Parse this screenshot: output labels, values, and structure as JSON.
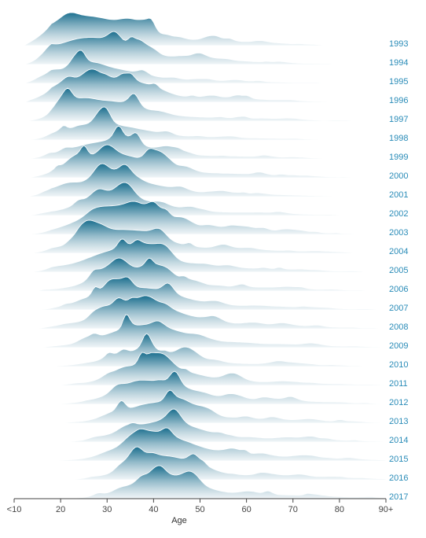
{
  "chart_data": {
    "type": "ridgeline",
    "xlabel": "Age",
    "x_ticks": [
      {
        "value": 10,
        "label": "<10"
      },
      {
        "value": 20,
        "label": "20"
      },
      {
        "value": 30,
        "label": "30"
      },
      {
        "value": 40,
        "label": "40"
      },
      {
        "value": 50,
        "label": "50"
      },
      {
        "value": 60,
        "label": "60"
      },
      {
        "value": 70,
        "label": "70"
      },
      {
        "value": 80,
        "label": "80"
      },
      {
        "value": 90,
        "label": "90+"
      }
    ],
    "xlim": [
      10,
      90
    ],
    "colors": {
      "ridge": "#1b6f8f",
      "label": "#2a8cb8",
      "axis": "#444444"
    },
    "series": [
      {
        "name": "1993",
        "peak_age": 25,
        "spread": 9,
        "roughness": 0.45,
        "seed": 1
      },
      {
        "name": "1994",
        "peak_age": 26,
        "spread": 8.5,
        "roughness": 0.45,
        "seed": 2
      },
      {
        "name": "1995",
        "peak_age": 27,
        "spread": 8.5,
        "roughness": 0.45,
        "seed": 3
      },
      {
        "name": "1996",
        "peak_age": 28,
        "spread": 8,
        "roughness": 0.45,
        "seed": 4
      },
      {
        "name": "1997",
        "peak_age": 29,
        "spread": 8,
        "roughness": 0.45,
        "seed": 5
      },
      {
        "name": "1998",
        "peak_age": 30,
        "spread": 8,
        "roughness": 0.45,
        "seed": 6
      },
      {
        "name": "1999",
        "peak_age": 30,
        "spread": 8,
        "roughness": 0.45,
        "seed": 7
      },
      {
        "name": "2000",
        "peak_age": 31,
        "spread": 8,
        "roughness": 0.45,
        "seed": 8
      },
      {
        "name": "2001",
        "peak_age": 31,
        "spread": 8,
        "roughness": 0.45,
        "seed": 9
      },
      {
        "name": "2002",
        "peak_age": 32,
        "spread": 8,
        "roughness": 0.45,
        "seed": 10
      },
      {
        "name": "2003",
        "peak_age": 33,
        "spread": 8,
        "roughness": 0.45,
        "seed": 11
      },
      {
        "name": "2004",
        "peak_age": 33,
        "spread": 8,
        "roughness": 0.45,
        "seed": 12
      },
      {
        "name": "2005",
        "peak_age": 34,
        "spread": 8,
        "roughness": 0.45,
        "seed": 13
      },
      {
        "name": "2006",
        "peak_age": 36,
        "spread": 8,
        "roughness": 0.45,
        "seed": 14
      },
      {
        "name": "2007",
        "peak_age": 37,
        "spread": 8,
        "roughness": 0.45,
        "seed": 15
      },
      {
        "name": "2008",
        "peak_age": 37,
        "spread": 8,
        "roughness": 0.45,
        "seed": 16
      },
      {
        "name": "2009",
        "peak_age": 38,
        "spread": 8,
        "roughness": 0.45,
        "seed": 17
      },
      {
        "name": "2010",
        "peak_age": 39,
        "spread": 8,
        "roughness": 0.45,
        "seed": 18
      },
      {
        "name": "2011",
        "peak_age": 40,
        "spread": 7.5,
        "roughness": 0.45,
        "seed": 19
      },
      {
        "name": "2012",
        "peak_age": 40,
        "spread": 7.5,
        "roughness": 0.45,
        "seed": 20
      },
      {
        "name": "2013",
        "peak_age": 41,
        "spread": 7.5,
        "roughness": 0.45,
        "seed": 21
      },
      {
        "name": "2014",
        "peak_age": 42,
        "spread": 7.5,
        "roughness": 0.45,
        "seed": 22
      },
      {
        "name": "2015",
        "peak_age": 41,
        "spread": 7.5,
        "roughness": 0.45,
        "seed": 23
      },
      {
        "name": "2016",
        "peak_age": 42,
        "spread": 7,
        "roughness": 0.45,
        "seed": 24
      },
      {
        "name": "2017",
        "peak_age": 42,
        "spread": 7,
        "roughness": 0.4,
        "seed": 25
      }
    ]
  }
}
